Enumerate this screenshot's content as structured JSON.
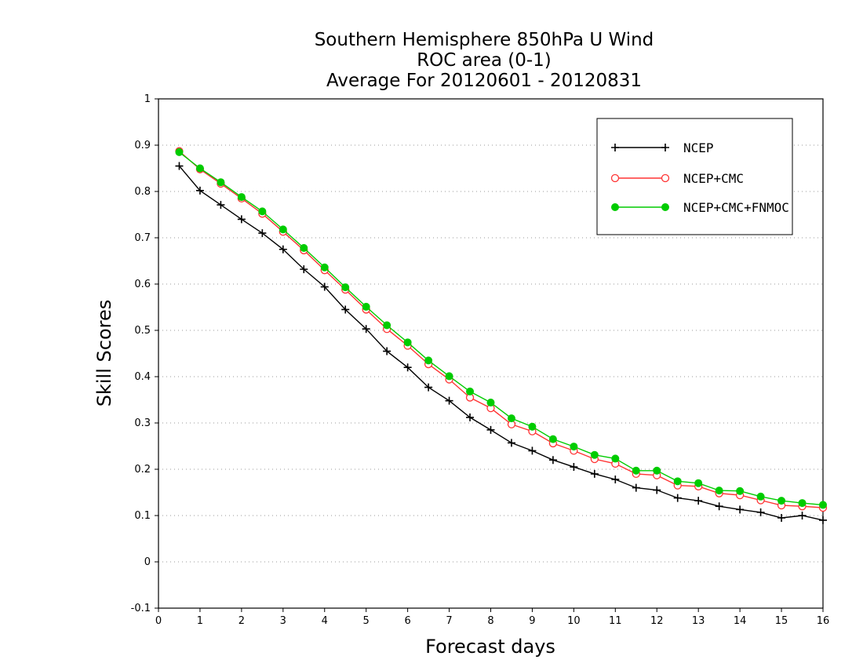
{
  "chart_data": {
    "type": "line",
    "title": "Southern Hemisphere 850hPa U Wind",
    "subtitle": "ROC area (0-1)",
    "subtitle2": "Average For 20120601 - 20120831",
    "xlabel": "Forecast days",
    "ylabel": "Skill Scores",
    "xlim": [
      0,
      16
    ],
    "ylim": [
      -0.1,
      1
    ],
    "xticks": [
      "0",
      "1",
      "2",
      "3",
      "4",
      "5",
      "6",
      "7",
      "8",
      "9",
      "10",
      "11",
      "12",
      "13",
      "14",
      "15",
      "16"
    ],
    "yticks": [
      "-0.1",
      "0",
      "0.1",
      "0.2",
      "0.3",
      "0.4",
      "0.5",
      "0.6",
      "0.7",
      "0.8",
      "0.9",
      "1"
    ],
    "grid": "horizontal dotted",
    "legend_position": "top-right",
    "x": [
      0.5,
      1,
      1.5,
      2,
      2.5,
      3,
      3.5,
      4,
      4.5,
      5,
      5.5,
      6,
      6.5,
      7,
      7.5,
      8,
      8.5,
      9,
      9.5,
      10,
      10.5,
      11,
      11.5,
      12,
      12.5,
      13,
      13.5,
      14,
      14.5,
      15,
      15.5,
      16
    ],
    "series": [
      {
        "name": "NCEP",
        "color": "#000000",
        "marker": "plus",
        "values": [
          0.855,
          0.802,
          0.771,
          0.74,
          0.71,
          0.675,
          0.632,
          0.594,
          0.545,
          0.503,
          0.455,
          0.42,
          0.377,
          0.348,
          0.312,
          0.285,
          0.257,
          0.24,
          0.22,
          0.205,
          0.19,
          0.178,
          0.16,
          0.155,
          0.138,
          0.132,
          0.12,
          0.113,
          0.107,
          0.095,
          0.1,
          0.09
        ]
      },
      {
        "name": "NCEP+CMC",
        "color": "#ff3333",
        "marker": "open-circle",
        "values": [
          0.887,
          0.848,
          0.817,
          0.785,
          0.752,
          0.713,
          0.673,
          0.63,
          0.588,
          0.545,
          0.503,
          0.467,
          0.427,
          0.394,
          0.355,
          0.332,
          0.297,
          0.282,
          0.256,
          0.24,
          0.222,
          0.212,
          0.19,
          0.187,
          0.165,
          0.163,
          0.148,
          0.144,
          0.133,
          0.122,
          0.12,
          0.117
        ]
      },
      {
        "name": "NCEP+CMC+FNMOC",
        "color": "#00cc00",
        "marker": "filled-circle",
        "values": [
          0.885,
          0.85,
          0.82,
          0.788,
          0.757,
          0.718,
          0.678,
          0.636,
          0.593,
          0.551,
          0.511,
          0.474,
          0.435,
          0.401,
          0.368,
          0.344,
          0.31,
          0.292,
          0.265,
          0.249,
          0.231,
          0.223,
          0.197,
          0.197,
          0.174,
          0.17,
          0.154,
          0.153,
          0.141,
          0.132,
          0.127,
          0.123
        ]
      }
    ]
  }
}
